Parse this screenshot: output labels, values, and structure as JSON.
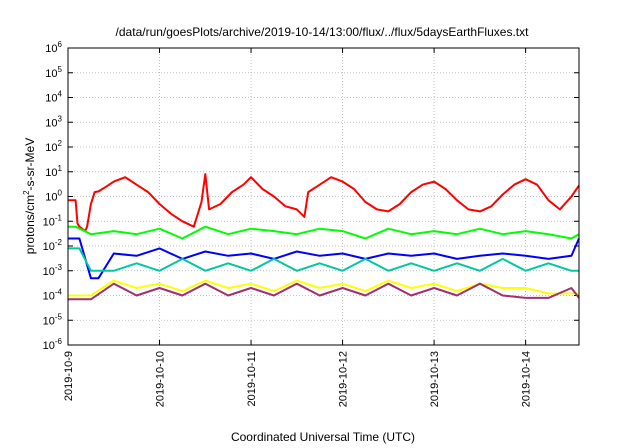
{
  "chart_data": {
    "type": "line",
    "title": "/data/run/goesPlots/archive/2019-10-14/13:00/flux/../flux/5daysEarthFluxes.txt",
    "xlabel": "Coordinated Universal Time (UTC)",
    "ylabel": {
      "pre": "protons/cm",
      "sup": "2",
      "post": "-s-sr-MeV"
    },
    "yscale": "log",
    "ylim": [
      1e-06,
      1000000.0
    ],
    "xlim": [
      "2019-10-09T00:00",
      "2019-10-14T14:00"
    ],
    "grid": true,
    "y_ticks": [
      {
        "value": 1000000.0,
        "base": "10",
        "exp": "6"
      },
      {
        "value": 100000.0,
        "base": "10",
        "exp": "5"
      },
      {
        "value": 10000.0,
        "base": "10",
        "exp": "4"
      },
      {
        "value": 1000.0,
        "base": "10",
        "exp": "3"
      },
      {
        "value": 100.0,
        "base": "10",
        "exp": "2"
      },
      {
        "value": 10.0,
        "base": "10",
        "exp": "1"
      },
      {
        "value": 1.0,
        "base": "10",
        "exp": "0"
      },
      {
        "value": 0.1,
        "base": "10",
        "exp": "-1"
      },
      {
        "value": 0.01,
        "base": "10",
        "exp": "-2"
      },
      {
        "value": 0.001,
        "base": "10",
        "exp": "-3"
      },
      {
        "value": 0.0001,
        "base": "10",
        "exp": "-4"
      },
      {
        "value": 1e-05,
        "base": "10",
        "exp": "-5"
      },
      {
        "value": 1e-06,
        "base": "10",
        "exp": "-6"
      }
    ],
    "x_ticks": [
      {
        "value": "2019-10-09T00:00",
        "label": "2019-10-9"
      },
      {
        "value": "2019-10-10T00:00",
        "label": "2019-10-10"
      },
      {
        "value": "2019-10-11T00:00",
        "label": "2019-10-11"
      },
      {
        "value": "2019-10-12T00:00",
        "label": "2019-10-12"
      },
      {
        "value": "2019-10-13T00:00",
        "label": "2019-10-13"
      },
      {
        "value": "2019-10-14T00:00",
        "label": "2019-10-14"
      }
    ],
    "series": [
      {
        "color": "#ff0000",
        "x": [
          "2019-10-09T00:00",
          "2019-10-09T02:00",
          "2019-10-09T02:30",
          "2019-10-09T03:00",
          "2019-10-09T04:30",
          "2019-10-09T05:00",
          "2019-10-09T06:00",
          "2019-10-09T07:00",
          "2019-10-09T08:00",
          "2019-10-09T10:00",
          "2019-10-09T12:00",
          "2019-10-09T15:00",
          "2019-10-09T18:00",
          "2019-10-09T21:00",
          "2019-10-10T00:00",
          "2019-10-10T03:00",
          "2019-10-10T06:00",
          "2019-10-10T09:00",
          "2019-10-10T11:00",
          "2019-10-10T12:00",
          "2019-10-10T13:00",
          "2019-10-10T16:00",
          "2019-10-10T19:00",
          "2019-10-10T22:00",
          "2019-10-11T00:00",
          "2019-10-11T03:00",
          "2019-10-11T06:00",
          "2019-10-11T09:00",
          "2019-10-11T12:00",
          "2019-10-11T14:00",
          "2019-10-11T15:00",
          "2019-10-11T18:00",
          "2019-10-11T21:00",
          "2019-10-12T00:00",
          "2019-10-12T03:00",
          "2019-10-12T06:00",
          "2019-10-12T09:00",
          "2019-10-12T12:00",
          "2019-10-12T15:00",
          "2019-10-12T18:00",
          "2019-10-12T21:00",
          "2019-10-13T00:00",
          "2019-10-13T03:00",
          "2019-10-13T06:00",
          "2019-10-13T09:00",
          "2019-10-13T12:00",
          "2019-10-13T15:00",
          "2019-10-13T18:00",
          "2019-10-13T21:00",
          "2019-10-14T00:00",
          "2019-10-14T03:00",
          "2019-10-14T06:00",
          "2019-10-14T09:00",
          "2019-10-14T12:00",
          "2019-10-14T14:00"
        ],
        "y": [
          0.7,
          0.7,
          0.08,
          0.06,
          0.04,
          0.06,
          0.5,
          1.5,
          1.6,
          2.5,
          4,
          6,
          3,
          1.5,
          0.5,
          0.2,
          0.1,
          0.06,
          0.6,
          8,
          0.3,
          0.5,
          1.5,
          3,
          6,
          2,
          1,
          0.4,
          0.3,
          0.15,
          1.5,
          3,
          6,
          4,
          2,
          0.6,
          0.3,
          0.25,
          0.5,
          1.5,
          3,
          4,
          2,
          0.7,
          0.3,
          0.25,
          0.4,
          1.2,
          3,
          5,
          3,
          0.7,
          0.3,
          1,
          2.8
        ]
      },
      {
        "color": "#00ff00",
        "x": [
          "2019-10-09T00:00",
          "2019-10-09T02:00",
          "2019-10-09T06:00",
          "2019-10-09T12:00",
          "2019-10-09T18:00",
          "2019-10-10T00:00",
          "2019-10-10T06:00",
          "2019-10-10T12:00",
          "2019-10-10T18:00",
          "2019-10-11T00:00",
          "2019-10-11T06:00",
          "2019-10-11T12:00",
          "2019-10-11T18:00",
          "2019-10-12T00:00",
          "2019-10-12T06:00",
          "2019-10-12T12:00",
          "2019-10-12T18:00",
          "2019-10-13T00:00",
          "2019-10-13T06:00",
          "2019-10-13T12:00",
          "2019-10-13T18:00",
          "2019-10-14T00:00",
          "2019-10-14T06:00",
          "2019-10-14T12:00",
          "2019-10-14T14:00"
        ],
        "y": [
          0.06,
          0.06,
          0.03,
          0.04,
          0.03,
          0.05,
          0.02,
          0.06,
          0.03,
          0.05,
          0.04,
          0.03,
          0.05,
          0.04,
          0.02,
          0.05,
          0.03,
          0.04,
          0.03,
          0.05,
          0.03,
          0.04,
          0.03,
          0.02,
          0.03
        ]
      },
      {
        "color": "#0000ff",
        "x": [
          "2019-10-09T00:00",
          "2019-10-09T03:00",
          "2019-10-09T06:00",
          "2019-10-09T08:00",
          "2019-10-09T12:00",
          "2019-10-09T18:00",
          "2019-10-10T00:00",
          "2019-10-10T06:00",
          "2019-10-10T12:00",
          "2019-10-10T18:00",
          "2019-10-11T00:00",
          "2019-10-11T06:00",
          "2019-10-11T12:00",
          "2019-10-11T18:00",
          "2019-10-12T00:00",
          "2019-10-12T06:00",
          "2019-10-12T12:00",
          "2019-10-12T18:00",
          "2019-10-13T00:00",
          "2019-10-13T06:00",
          "2019-10-13T12:00",
          "2019-10-13T18:00",
          "2019-10-14T00:00",
          "2019-10-14T06:00",
          "2019-10-14T12:00",
          "2019-10-14T14:00"
        ],
        "y": [
          0.02,
          0.02,
          0.0005,
          0.0005,
          0.005,
          0.004,
          0.008,
          0.003,
          0.006,
          0.004,
          0.005,
          0.003,
          0.006,
          0.004,
          0.005,
          0.003,
          0.005,
          0.004,
          0.005,
          0.003,
          0.004,
          0.005,
          0.004,
          0.003,
          0.004,
          0.02
        ]
      },
      {
        "color": "#00c8a0",
        "x": [
          "2019-10-09T00:00",
          "2019-10-09T03:00",
          "2019-10-09T06:00",
          "2019-10-09T12:00",
          "2019-10-09T18:00",
          "2019-10-10T00:00",
          "2019-10-10T06:00",
          "2019-10-10T12:00",
          "2019-10-10T18:00",
          "2019-10-11T00:00",
          "2019-10-11T06:00",
          "2019-10-11T12:00",
          "2019-10-11T18:00",
          "2019-10-12T00:00",
          "2019-10-12T06:00",
          "2019-10-12T12:00",
          "2019-10-12T18:00",
          "2019-10-13T00:00",
          "2019-10-13T06:00",
          "2019-10-13T12:00",
          "2019-10-13T18:00",
          "2019-10-14T00:00",
          "2019-10-14T06:00",
          "2019-10-14T12:00",
          "2019-10-14T14:00"
        ],
        "y": [
          0.008,
          0.008,
          0.001,
          0.001,
          0.002,
          0.001,
          0.003,
          0.001,
          0.002,
          0.001,
          0.003,
          0.001,
          0.002,
          0.001,
          0.003,
          0.001,
          0.002,
          0.001,
          0.002,
          0.001,
          0.003,
          0.001,
          0.002,
          0.001,
          0.001
        ]
      },
      {
        "color": "#ffff00",
        "x": [
          "2019-10-09T00:00",
          "2019-10-09T06:00",
          "2019-10-09T12:00",
          "2019-10-09T18:00",
          "2019-10-10T00:00",
          "2019-10-10T06:00",
          "2019-10-10T12:00",
          "2019-10-10T18:00",
          "2019-10-11T00:00",
          "2019-10-11T06:00",
          "2019-10-11T12:00",
          "2019-10-11T18:00",
          "2019-10-12T00:00",
          "2019-10-12T06:00",
          "2019-10-12T12:00",
          "2019-10-12T18:00",
          "2019-10-13T00:00",
          "2019-10-13T06:00",
          "2019-10-13T12:00",
          "2019-10-13T18:00",
          "2019-10-14T00:00",
          "2019-10-14T06:00",
          "2019-10-14T12:00",
          "2019-10-14T14:00"
        ],
        "y": [
          0.0001,
          0.0001,
          0.0004,
          0.0002,
          0.0003,
          0.00015,
          0.0004,
          0.0002,
          0.0003,
          0.00015,
          0.0004,
          0.0002,
          0.0003,
          0.00015,
          0.0004,
          0.0002,
          0.0003,
          0.00015,
          0.0003,
          0.0002,
          0.0002,
          0.00012,
          0.00012,
          0.00012
        ]
      },
      {
        "color": "#a03070",
        "x": [
          "2019-10-09T00:00",
          "2019-10-09T06:00",
          "2019-10-09T12:00",
          "2019-10-09T18:00",
          "2019-10-10T00:00",
          "2019-10-10T06:00",
          "2019-10-10T12:00",
          "2019-10-10T18:00",
          "2019-10-11T00:00",
          "2019-10-11T06:00",
          "2019-10-11T12:00",
          "2019-10-11T18:00",
          "2019-10-12T00:00",
          "2019-10-12T06:00",
          "2019-10-12T12:00",
          "2019-10-12T18:00",
          "2019-10-13T00:00",
          "2019-10-13T06:00",
          "2019-10-13T12:00",
          "2019-10-13T18:00",
          "2019-10-14T00:00",
          "2019-10-14T06:00",
          "2019-10-14T12:00",
          "2019-10-14T14:00"
        ],
        "y": [
          7e-05,
          7e-05,
          0.0003,
          0.0001,
          0.0002,
          0.0001,
          0.0003,
          0.0001,
          0.0002,
          0.0001,
          0.0003,
          0.0001,
          0.0002,
          0.0001,
          0.0003,
          0.0001,
          0.0002,
          0.0001,
          0.0003,
          0.0001,
          8e-05,
          8e-05,
          0.0002,
          8e-05
        ]
      }
    ]
  }
}
